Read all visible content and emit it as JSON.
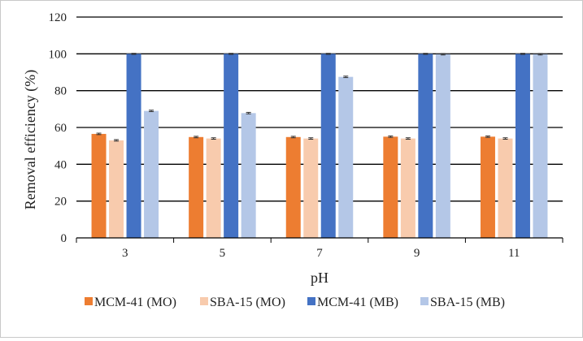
{
  "chart_data": {
    "type": "bar",
    "title": "",
    "xlabel": "pH",
    "ylabel": "Removal efficiency (%)",
    "categories": [
      "3",
      "5",
      "7",
      "9",
      "11"
    ],
    "ylim": [
      0,
      120
    ],
    "yticks": [
      0,
      20,
      40,
      60,
      80,
      100,
      120
    ],
    "grid": true,
    "legend_position": "bottom",
    "error_bars": true,
    "series": [
      {
        "name": "MCM-41 (MO)",
        "color": "#ED7D31",
        "values": [
          56.5,
          54.8,
          54.8,
          55.0,
          55.0
        ],
        "errors": [
          0.4,
          0.4,
          0.4,
          0.4,
          0.4
        ]
      },
      {
        "name": "SBA-15 (MO)",
        "color": "#F8CBAD",
        "values": [
          53.0,
          54.0,
          54.0,
          54.0,
          54.0
        ],
        "errors": [
          0.4,
          0.4,
          0.4,
          0.4,
          0.4
        ]
      },
      {
        "name": "MCM-41 (MB)",
        "color": "#4472C4",
        "values": [
          100.0,
          100.0,
          100.0,
          100.0,
          100.0
        ],
        "errors": [
          0.3,
          0.3,
          0.3,
          0.3,
          0.3
        ]
      },
      {
        "name": "SBA-15 (MB)",
        "color": "#B4C7E7",
        "values": [
          69.0,
          67.8,
          87.5,
          99.8,
          99.8
        ],
        "errors": [
          0.4,
          0.4,
          0.4,
          0.4,
          0.4
        ]
      }
    ]
  }
}
